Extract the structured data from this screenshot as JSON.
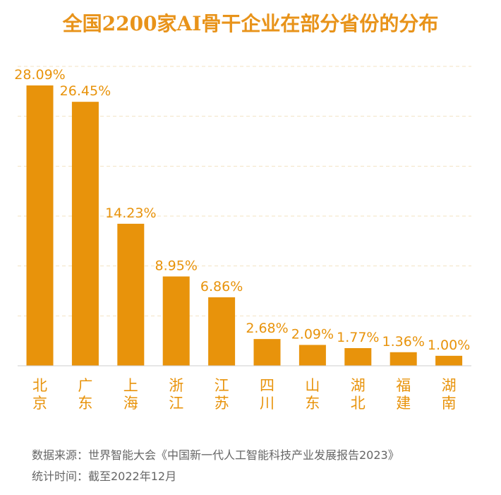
{
  "chart_data": {
    "type": "bar",
    "title": "全国2200家AI骨干企业在部分省份的分布",
    "categories": [
      "北京",
      "广东",
      "上海",
      "浙江",
      "江苏",
      "四川",
      "山东",
      "湖北",
      "福建",
      "湖南"
    ],
    "values": [
      28.09,
      26.45,
      14.23,
      8.95,
      6.86,
      2.68,
      2.09,
      1.77,
      1.36,
      1.0
    ],
    "data_labels": [
      "28.09%",
      "26.45%",
      "14.23%",
      "8.95%",
      "6.86%",
      "2.68%",
      "2.09%",
      "1.77%",
      "1.36%",
      "1.00%"
    ],
    "xlabel": "",
    "ylabel": "",
    "ylim": [
      0,
      30
    ],
    "grid": true,
    "legend": "none",
    "colors": {
      "bar": "#e8930b",
      "label": "#e8930b",
      "title": "#e8931a",
      "grid": "#f3e3c2",
      "axis": "#cccccc"
    }
  },
  "source": {
    "line1": "数据来源：世界智能大会《中国新一代人工智能科技产业发展报告2023》",
    "line2": "统计时间：截至2022年12月"
  }
}
